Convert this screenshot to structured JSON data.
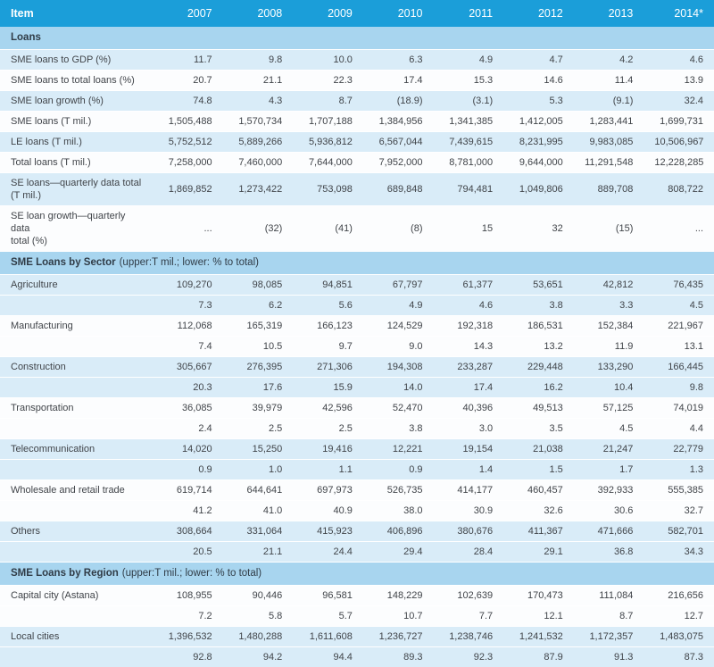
{
  "colors": {
    "header_bg": "#1b9ed9",
    "header_text": "#ffffff",
    "section_bg": "#a8d5ef",
    "row_alt_bg": "#d9ecf8",
    "row_bg": "#fcfdfe",
    "text": "#404449",
    "section_text": "#303c47"
  },
  "chart_data": {
    "type": "table",
    "columns": [
      "Item",
      "2007",
      "2008",
      "2009",
      "2010",
      "2011",
      "2012",
      "2013",
      "2014*"
    ],
    "sections": [
      {
        "title": "Loans",
        "note": "",
        "rows": [
          {
            "label": "SME loans to GDP (%)",
            "values": [
              "11.7",
              "9.8",
              "10.0",
              "6.3",
              "4.9",
              "4.7",
              "4.2",
              "4.6"
            ]
          },
          {
            "label": "SME loans to total loans (%)",
            "values": [
              "20.7",
              "21.1",
              "22.3",
              "17.4",
              "15.3",
              "14.6",
              "11.4",
              "13.9"
            ]
          },
          {
            "label": "SME loan growth (%)",
            "values": [
              "74.8",
              "4.3",
              "8.7",
              "(18.9)",
              "(3.1)",
              "5.3",
              "(9.1)",
              "32.4"
            ]
          },
          {
            "label": "SME loans (T mil.)",
            "values": [
              "1,505,488",
              "1,570,734",
              "1,707,188",
              "1,384,956",
              "1,341,385",
              "1,412,005",
              "1,283,441",
              "1,699,731"
            ]
          },
          {
            "label": "LE loans (T mil.)",
            "values": [
              "5,752,512",
              "5,889,266",
              "5,936,812",
              "6,567,044",
              "7,439,615",
              "8,231,995",
              "9,983,085",
              "10,506,967"
            ]
          },
          {
            "label": "Total loans (T mil.)",
            "values": [
              "7,258,000",
              "7,460,000",
              "7,644,000",
              "7,952,000",
              "8,781,000",
              "9,644,000",
              "11,291,548",
              "12,228,285"
            ]
          },
          {
            "label": "SE loans—quarterly data total\n(T mil.)",
            "values": [
              "1,869,852",
              "1,273,422",
              "753,098",
              "689,848",
              "794,481",
              "1,049,806",
              "889,708",
              "808,722"
            ]
          },
          {
            "label": "SE loan growth—quarterly data\ntotal (%)",
            "values": [
              "...",
              "(32)",
              "(41)",
              "(8)",
              "15",
              "32",
              "(15)",
              "..."
            ]
          }
        ]
      },
      {
        "title": "SME Loans by Sector",
        "note": "(upper:T mil.; lower: % to total)",
        "rows": [
          {
            "label": "Agriculture",
            "values": [
              "109,270",
              "98,085",
              "94,851",
              "67,797",
              "61,377",
              "53,651",
              "42,812",
              "76,435"
            ],
            "pct": [
              "7.3",
              "6.2",
              "5.6",
              "4.9",
              "4.6",
              "3.8",
              "3.3",
              "4.5"
            ]
          },
          {
            "label": "Manufacturing",
            "values": [
              "112,068",
              "165,319",
              "166,123",
              "124,529",
              "192,318",
              "186,531",
              "152,384",
              "221,967"
            ],
            "pct": [
              "7.4",
              "10.5",
              "9.7",
              "9.0",
              "14.3",
              "13.2",
              "11.9",
              "13.1"
            ]
          },
          {
            "label": "Construction",
            "values": [
              "305,667",
              "276,395",
              "271,306",
              "194,308",
              "233,287",
              "229,448",
              "133,290",
              "166,445"
            ],
            "pct": [
              "20.3",
              "17.6",
              "15.9",
              "14.0",
              "17.4",
              "16.2",
              "10.4",
              "9.8"
            ]
          },
          {
            "label": "Transportation",
            "values": [
              "36,085",
              "39,979",
              "42,596",
              "52,470",
              "40,396",
              "49,513",
              "57,125",
              "74,019"
            ],
            "pct": [
              "2.4",
              "2.5",
              "2.5",
              "3.8",
              "3.0",
              "3.5",
              "4.5",
              "4.4"
            ]
          },
          {
            "label": "Telecommunication",
            "values": [
              "14,020",
              "15,250",
              "19,416",
              "12,221",
              "19,154",
              "21,038",
              "21,247",
              "22,779"
            ],
            "pct": [
              "0.9",
              "1.0",
              "1.1",
              "0.9",
              "1.4",
              "1.5",
              "1.7",
              "1.3"
            ]
          },
          {
            "label": "Wholesale and retail trade",
            "values": [
              "619,714",
              "644,641",
              "697,973",
              "526,735",
              "414,177",
              "460,457",
              "392,933",
              "555,385"
            ],
            "pct": [
              "41.2",
              "41.0",
              "40.9",
              "38.0",
              "30.9",
              "32.6",
              "30.6",
              "32.7"
            ]
          },
          {
            "label": "Others",
            "values": [
              "308,664",
              "331,064",
              "415,923",
              "406,896",
              "380,676",
              "411,367",
              "471,666",
              "582,701"
            ],
            "pct": [
              "20.5",
              "21.1",
              "24.4",
              "29.4",
              "28.4",
              "29.1",
              "36.8",
              "34.3"
            ]
          }
        ]
      },
      {
        "title": "SME Loans by Region",
        "note": "(upper:T mil.; lower: % to total)",
        "rows": [
          {
            "label": "Capital city (Astana)",
            "values": [
              "108,955",
              "90,446",
              "96,581",
              "148,229",
              "102,639",
              "170,473",
              "111,084",
              "216,656"
            ],
            "pct": [
              "7.2",
              "5.8",
              "5.7",
              "10.7",
              "7.7",
              "12.1",
              "8.7",
              "12.7"
            ]
          },
          {
            "label": "Local cities",
            "values": [
              "1,396,532",
              "1,480,288",
              "1,611,608",
              "1,236,727",
              "1,238,746",
              "1,241,532",
              "1,172,357",
              "1,483,075"
            ],
            "pct": [
              "92.8",
              "94.2",
              "94.4",
              "89.3",
              "92.3",
              "87.9",
              "91.3",
              "87.3"
            ]
          }
        ]
      }
    ]
  }
}
